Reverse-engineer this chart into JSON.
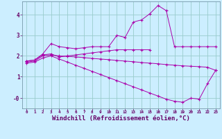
{
  "background_color": "#cceeff",
  "line_color": "#aa00aa",
  "grid_color": "#99cccc",
  "xlabel": "Windchill (Refroidissement éolien,°C)",
  "xlabel_fontsize": 6.5,
  "xtick_labels": [
    "0",
    "1",
    "2",
    "3",
    "4",
    "5",
    "6",
    "7",
    "8",
    "9",
    "10",
    "11",
    "12",
    "13",
    "14",
    "15",
    "16",
    "17",
    "18",
    "19",
    "20",
    "21",
    "22",
    "23"
  ],
  "ytick_labels": [
    "-0",
    "1",
    "2",
    "3",
    "4"
  ],
  "ytick_vals": [
    -0.05,
    1.0,
    2.0,
    3.0,
    4.0
  ],
  "ylim": [
    -0.55,
    4.65
  ],
  "xlim": [
    -0.5,
    23.5
  ],
  "line1_x": [
    0,
    1,
    2,
    3,
    4,
    5,
    6,
    7,
    8,
    9,
    10,
    11,
    12,
    13,
    14,
    15,
    16,
    17,
    18,
    19,
    20,
    21,
    22,
    23
  ],
  "line1_y": [
    1.75,
    1.8,
    2.1,
    2.6,
    2.45,
    2.4,
    2.35,
    2.4,
    2.45,
    2.45,
    2.45,
    3.0,
    2.9,
    3.65,
    3.75,
    4.05,
    4.45,
    4.2,
    2.45,
    2.45,
    2.45,
    2.45,
    2.45,
    2.45
  ],
  "line2_x": [
    0,
    1,
    2,
    3,
    4,
    5,
    6,
    7,
    8,
    9,
    10,
    11,
    12,
    13,
    14,
    15
  ],
  "line2_y": [
    1.75,
    1.8,
    2.05,
    2.1,
    1.95,
    2.0,
    2.05,
    2.1,
    2.15,
    2.2,
    2.25,
    2.3,
    2.3,
    2.3,
    2.3,
    2.3
  ],
  "line3_x": [
    0,
    1,
    2,
    3,
    4,
    5,
    6,
    7,
    8,
    9,
    10,
    11,
    12,
    13,
    14,
    15,
    16,
    17,
    18,
    19,
    20,
    21,
    22,
    23
  ],
  "line3_y": [
    1.7,
    1.75,
    2.0,
    2.05,
    2.0,
    1.98,
    1.95,
    1.92,
    1.88,
    1.85,
    1.82,
    1.78,
    1.75,
    1.72,
    1.68,
    1.65,
    1.62,
    1.58,
    1.55,
    1.52,
    1.5,
    1.48,
    1.45,
    1.3
  ],
  "line4_x": [
    0,
    1,
    2,
    3,
    4,
    5,
    6,
    7,
    8,
    9,
    10,
    11,
    12,
    13,
    14,
    15,
    16,
    17,
    18,
    19,
    20,
    21,
    22,
    23
  ],
  "line4_y": [
    1.65,
    1.7,
    1.9,
    2.0,
    1.85,
    1.7,
    1.55,
    1.4,
    1.25,
    1.1,
    0.95,
    0.8,
    0.65,
    0.5,
    0.35,
    0.2,
    0.05,
    -0.1,
    -0.2,
    -0.25,
    -0.05,
    -0.1,
    0.65,
    1.3
  ]
}
